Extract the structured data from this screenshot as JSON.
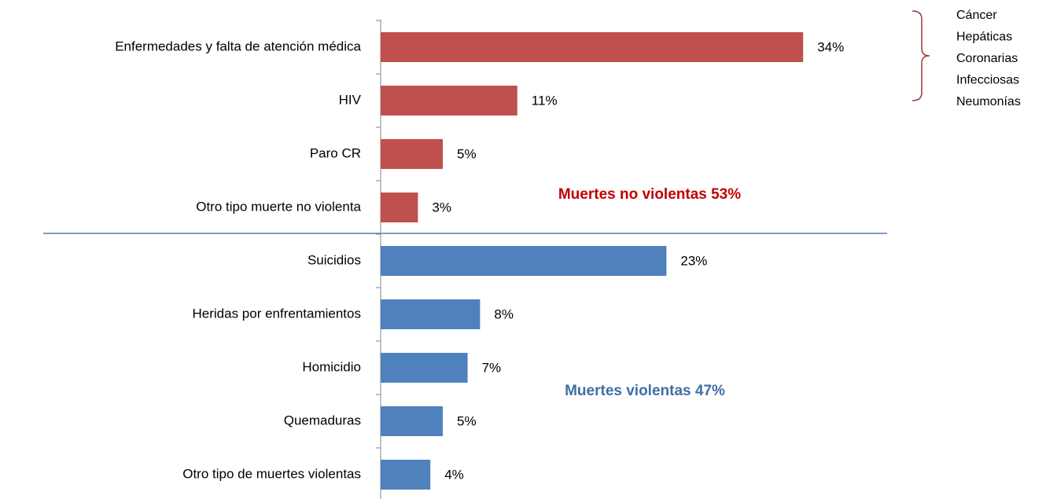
{
  "chart_data": {
    "type": "bar",
    "orientation": "horizontal",
    "categories": [
      "Enfermedades y falta de atención médica",
      "HIV",
      "Paro CR",
      "Otro tipo muerte no violenta",
      "Suicidios",
      "Heridas por enfrentamientos",
      "Homicidio",
      "Quemaduras",
      "Otro tipo de muertes violentas"
    ],
    "values": [
      34,
      11,
      5,
      3,
      23,
      8,
      7,
      5,
      4
    ],
    "value_labels": [
      "34%",
      "11%",
      "5%",
      "3%",
      "23%",
      "8%",
      "7%",
      "5%",
      "4%"
    ],
    "colors": [
      "#c0504d",
      "#c0504d",
      "#c0504d",
      "#c0504d",
      "#4f81bd",
      "#4f81bd",
      "#4f81bd",
      "#4f81bd",
      "#4f81bd"
    ],
    "xlim": [
      0,
      40
    ],
    "annotations": [
      {
        "text": "Muertes no violentas 53%",
        "color": "#c00000"
      },
      {
        "text": "Muertes violentas 47%",
        "color": "#3f6ea6"
      }
    ],
    "bracket_items": [
      "Cáncer",
      "Hepáticas",
      "Coronarias",
      "Infecciosas",
      "Neumonías"
    ]
  }
}
